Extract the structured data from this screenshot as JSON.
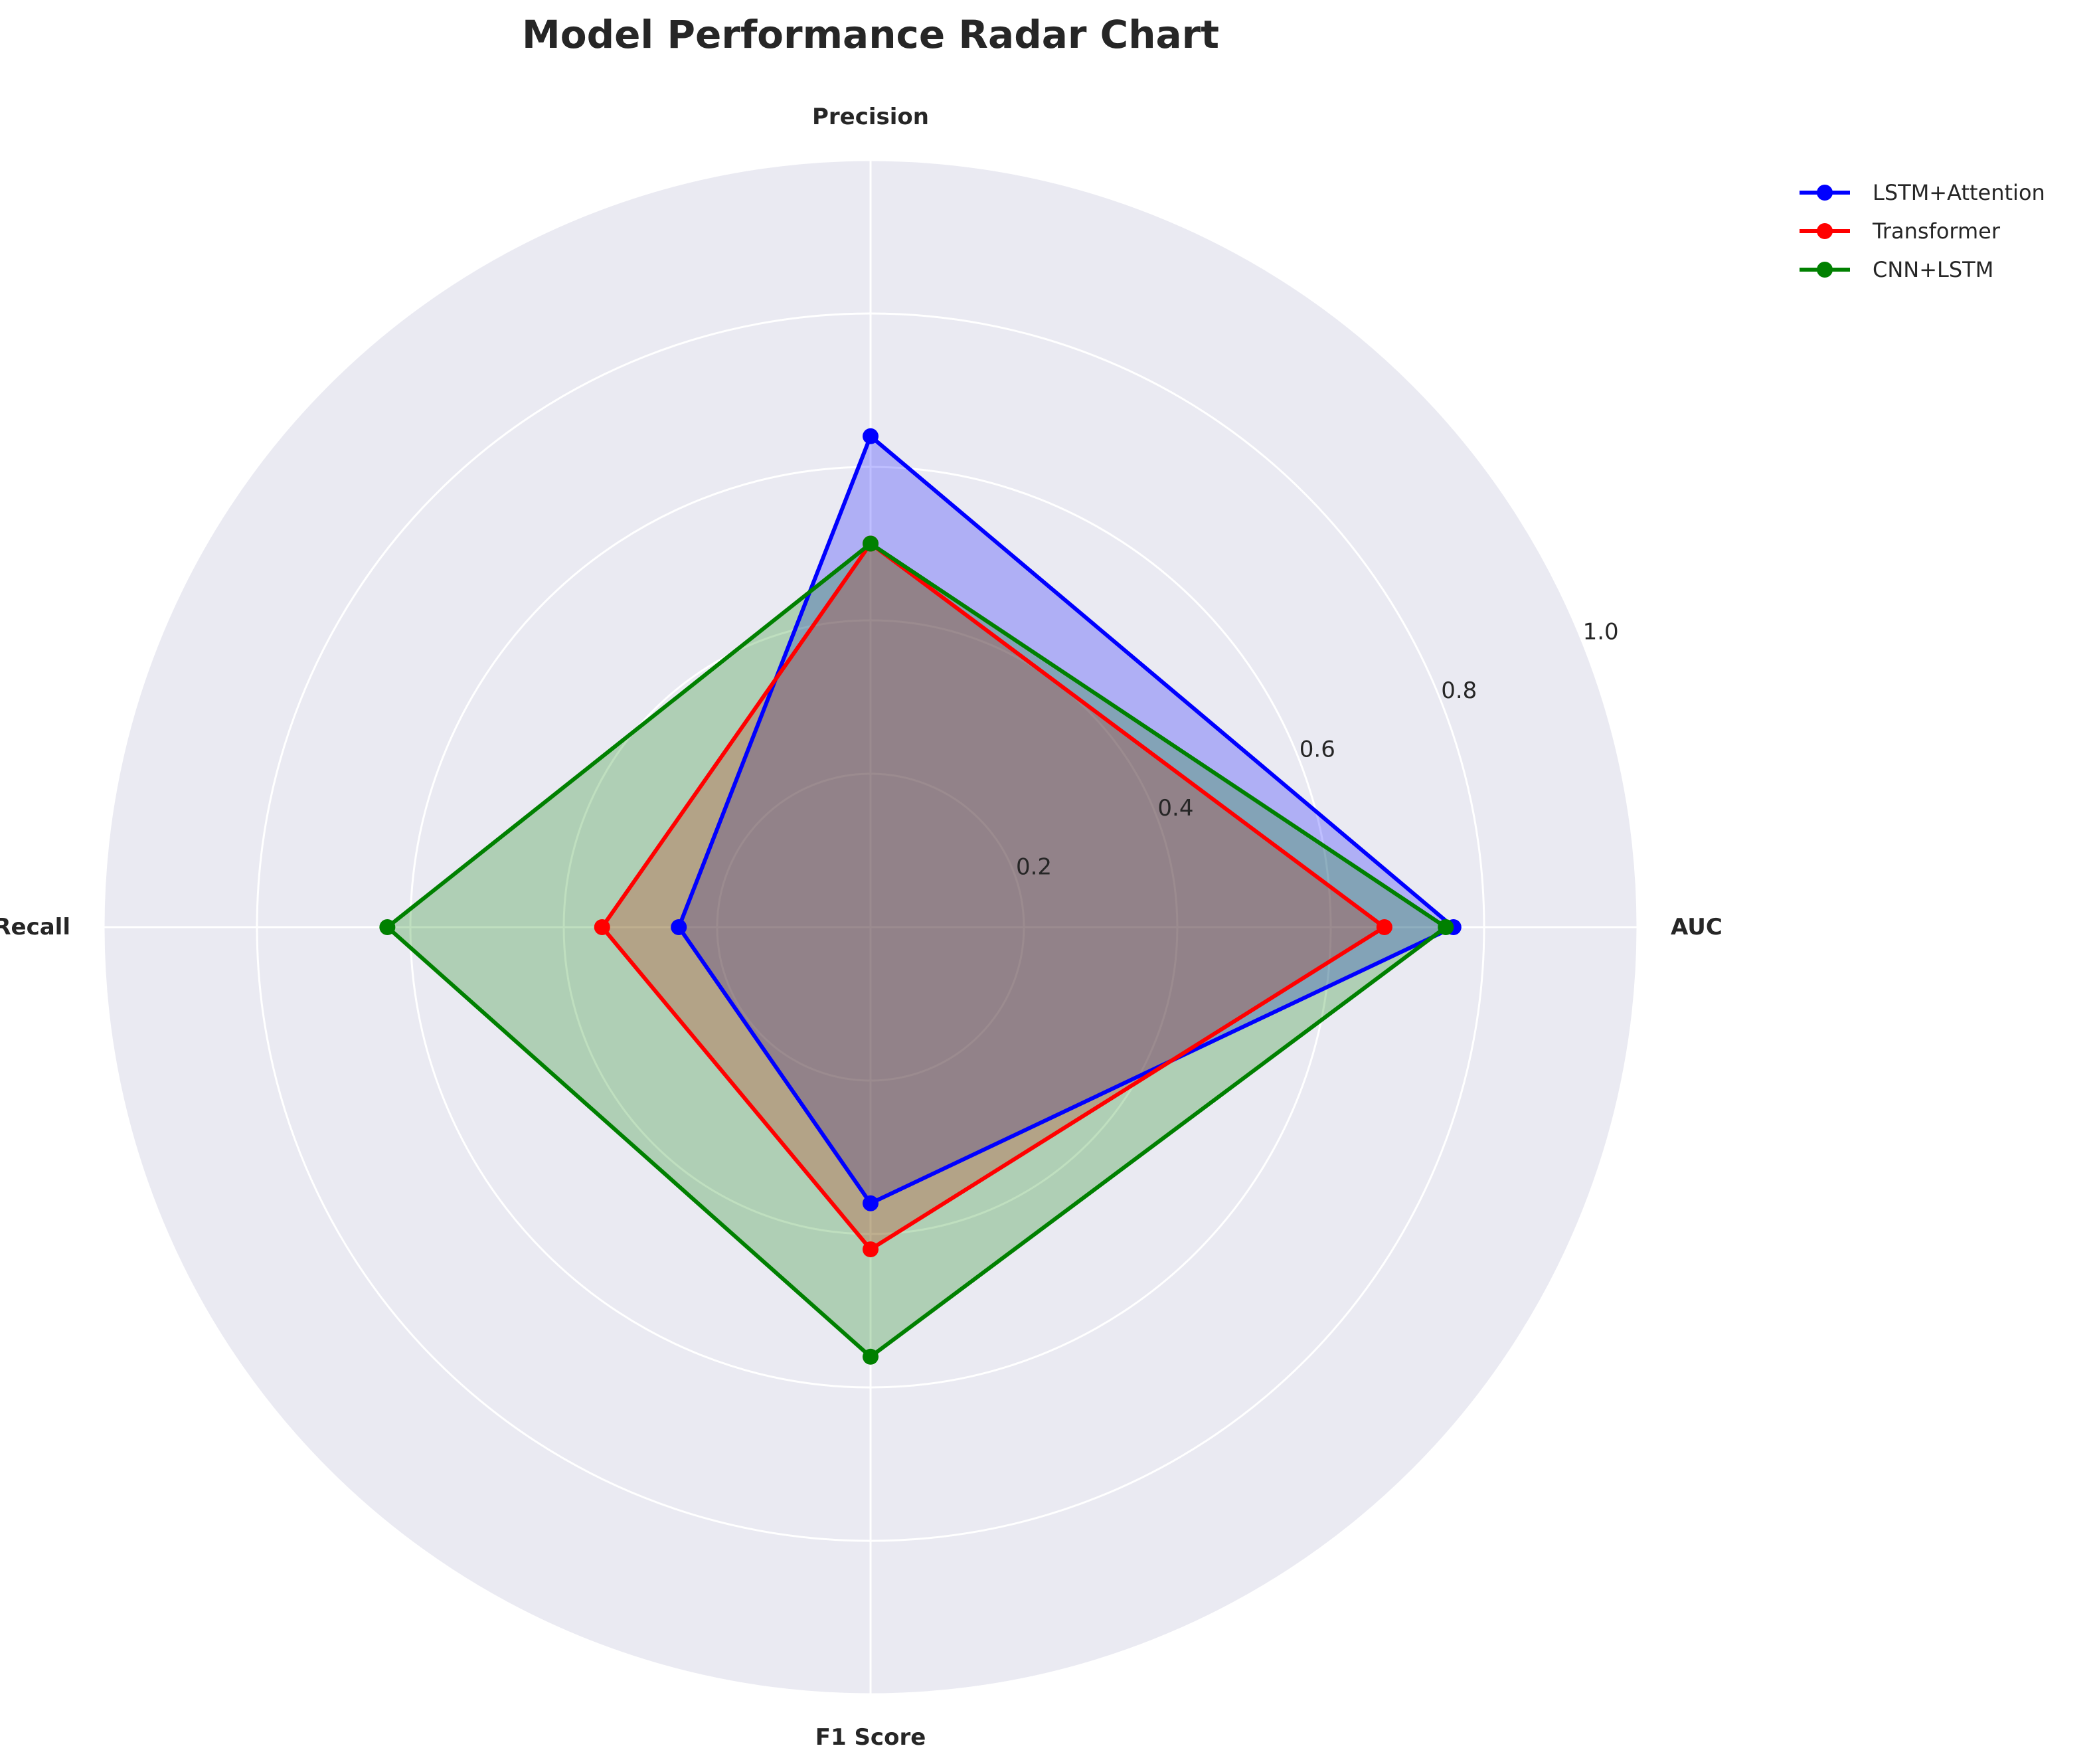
{
  "chart_data": {
    "type": "radar",
    "title": "Model Performance Radar Chart",
    "axes": [
      "AUC",
      "Precision",
      "Recall",
      "F1 Score"
    ],
    "rlim": [
      0,
      1.0
    ],
    "rticks": [
      0.2,
      0.4,
      0.6,
      0.8,
      1.0
    ],
    "rtick_labels": [
      "0.2",
      "0.4",
      "0.6",
      "0.8",
      "1.0"
    ],
    "grid": true,
    "legend_placement": "top-right",
    "series": [
      {
        "name": "LSTM+Attention",
        "values": [
          0.76,
          0.64,
          0.25,
          0.36
        ],
        "color": "#0000ff"
      },
      {
        "name": "Transformer",
        "values": [
          0.67,
          0.5,
          0.35,
          0.42
        ],
        "color": "#ff0000"
      },
      {
        "name": "CNN+LSTM",
        "values": [
          0.75,
          0.5,
          0.63,
          0.56
        ],
        "color": "#008000"
      }
    ]
  }
}
